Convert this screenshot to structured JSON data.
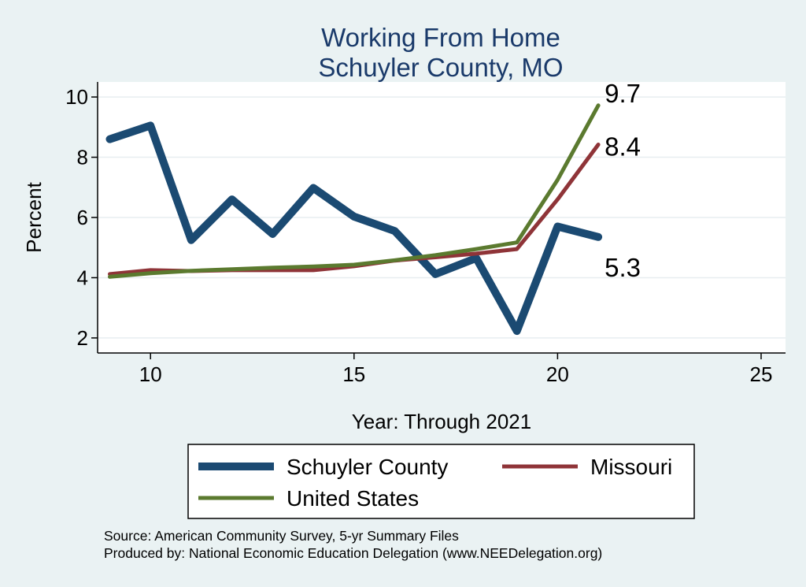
{
  "chart_data": {
    "type": "line",
    "title": [
      "Working From Home",
      "Schuyler County, MO"
    ],
    "xlabel": "Year: Through 2021",
    "ylabel": "Percent",
    "xlim": [
      8.7,
      25.6
    ],
    "ylim": [
      1.5,
      10.5
    ],
    "xticks": [
      10,
      15,
      20,
      25
    ],
    "yticks": [
      2,
      4,
      6,
      8,
      10
    ],
    "grid": true,
    "legend_position": "bottom",
    "x": [
      9,
      10,
      11,
      12,
      13,
      14,
      15,
      16,
      17,
      18,
      19,
      20,
      21
    ],
    "series": [
      {
        "name": "Schuyler County",
        "color": "#1b4a72",
        "values": [
          8.6,
          9.05,
          5.25,
          6.6,
          5.45,
          6.98,
          6.03,
          5.55,
          4.12,
          4.65,
          2.23,
          5.7,
          5.35
        ],
        "end_label": "5.3"
      },
      {
        "name": "Missouri",
        "color": "#8f3438",
        "values": [
          4.12,
          4.25,
          4.22,
          4.25,
          4.25,
          4.25,
          4.38,
          4.57,
          4.68,
          4.8,
          4.95,
          6.6,
          8.42
        ],
        "end_label": "8.4"
      },
      {
        "name": "United States",
        "color": "#5b7a2f",
        "values": [
          4.03,
          4.15,
          4.23,
          4.28,
          4.33,
          4.37,
          4.43,
          4.58,
          4.75,
          4.95,
          5.17,
          7.25,
          9.72
        ],
        "end_label": "9.7"
      }
    ]
  },
  "notes": {
    "source": "Source: American Community Survey, 5-yr Summary Files",
    "produced": "Produced by: National Economic Education Delegation (www.NEEDelegation.org)"
  }
}
